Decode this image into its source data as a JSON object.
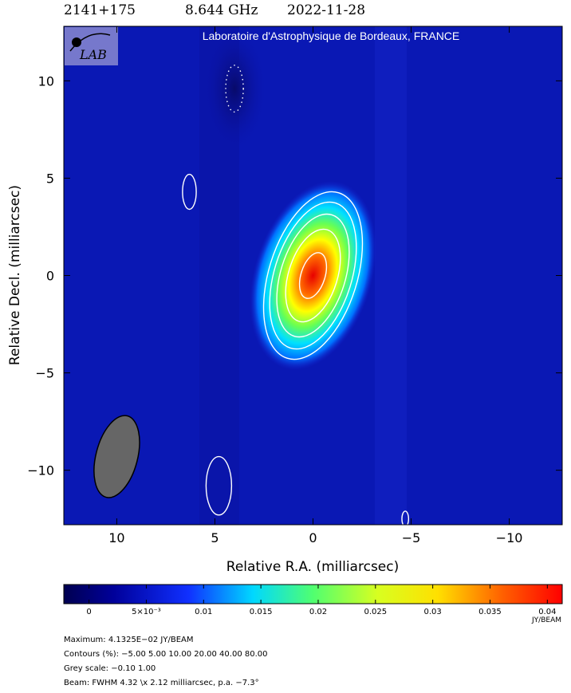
{
  "header": {
    "source": "2141+175",
    "frequency": "8.644 GHz",
    "date": "2022-11-28"
  },
  "lab_banner": "Laboratoire d'Astrophysique de Bordeaux, FRANCE",
  "logo_text": "LAB",
  "chart_data": {
    "type": "heatmap",
    "xlabel": "Relative R.A. (milliarcsec)",
    "ylabel": "Relative Decl. (milliarcsec)",
    "xlim": [
      12.7,
      -12.7
    ],
    "ylim": [
      -12.8,
      12.8
    ],
    "x_ticks": [
      10,
      5,
      0,
      -5,
      -10
    ],
    "x_tick_labels": [
      "10",
      "5",
      "0",
      "−5",
      "−10"
    ],
    "y_ticks": [
      10,
      5,
      0,
      -5,
      -10
    ],
    "y_tick_labels": [
      "10",
      "5",
      "0",
      "−5",
      "−10"
    ],
    "peak_position": [
      0,
      0
    ],
    "contours_percent": [
      -5.0,
      5.0,
      10.0,
      20.0,
      40.0,
      80.0
    ],
    "beam": {
      "major": 4.32,
      "minor": 2.12,
      "pa_deg": -7.3,
      "center": [
        10.0,
        -9.3
      ]
    },
    "colorbar": {
      "min": -0.0022,
      "max": 0.0413,
      "ticks": [
        0,
        0.005,
        0.01,
        0.015,
        0.02,
        0.025,
        0.03,
        0.035,
        0.04
      ],
      "tick_labels": [
        "0",
        "5×10⁻³",
        "0.01",
        "0.015",
        "0.02",
        "0.025",
        "0.03",
        "0.035",
        "0.04"
      ],
      "unit": "JY/BEAM"
    },
    "extra_contours": [
      {
        "level_percent": 5,
        "center": [
          6.3,
          4.3
        ],
        "rx": 0.35,
        "ry": 0.9
      },
      {
        "level_percent": 5,
        "center": [
          4.8,
          -10.8
        ],
        "rx": 0.65,
        "ry": 1.5
      },
      {
        "level_percent": 5,
        "center": [
          -4.7,
          -12.5
        ],
        "rx": 0.17,
        "ry": 0.4
      },
      {
        "level_percent": -5,
        "center": [
          4.0,
          9.6
        ],
        "rx": 0.45,
        "ry": 1.2
      }
    ]
  },
  "info": {
    "maximum": "Maximum: 4.1325E−02 JY/BEAM",
    "contours": "Contours (%): −5.00 5.00 10.00 20.00 40.00 80.00",
    "grey_scale": "Grey scale: −0.10 1.00",
    "beam": "Beam: FWHM 4.32 \\x 2.12 milliarcsec, p.a. −7.3°"
  }
}
